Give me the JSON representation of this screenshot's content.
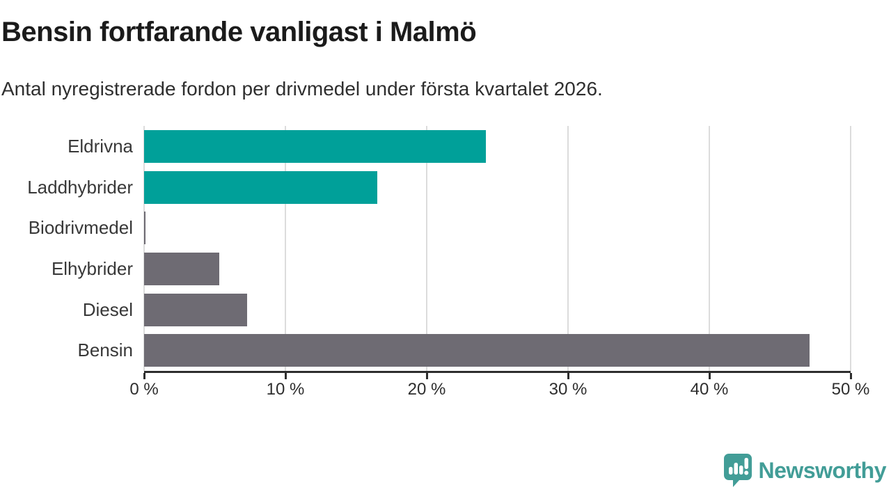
{
  "header": {
    "title": "Bensin fortfarande vanligast i Malmö",
    "subtitle": "Antal nyregistrerade fordon per drivmedel under första kvartalet 2026."
  },
  "chart_data": {
    "type": "bar",
    "orientation": "horizontal",
    "categories": [
      "Eldrivna",
      "Laddhybrider",
      "Biodrivmedel",
      "Elhybrider",
      "Diesel",
      "Bensin"
    ],
    "values": [
      24.2,
      16.5,
      0.1,
      5.3,
      7.3,
      47.1
    ],
    "unit": "%",
    "bar_colors": [
      "#00a099",
      "#00a099",
      "#6e6b73",
      "#6e6b73",
      "#6e6b73",
      "#6e6b73"
    ],
    "title": "Bensin fortfarande vanligast i Malmö",
    "xlabel": "",
    "ylabel": "",
    "xlim": [
      0,
      50
    ],
    "xticks": [
      0,
      10,
      20,
      30,
      40,
      50
    ],
    "xtick_labels": [
      "0 %",
      "10 %",
      "20 %",
      "30 %",
      "40 %",
      "50 %"
    ],
    "grid": "vertical-only",
    "legend": "none"
  },
  "colors": {
    "accent_teal": "#00a099",
    "bar_gray": "#6e6b73",
    "gridline": "#dcdcdc",
    "axis": "#2e2e2e",
    "logo_teal": "#429d97"
  },
  "footer": {
    "brand": "Newsworthy"
  }
}
